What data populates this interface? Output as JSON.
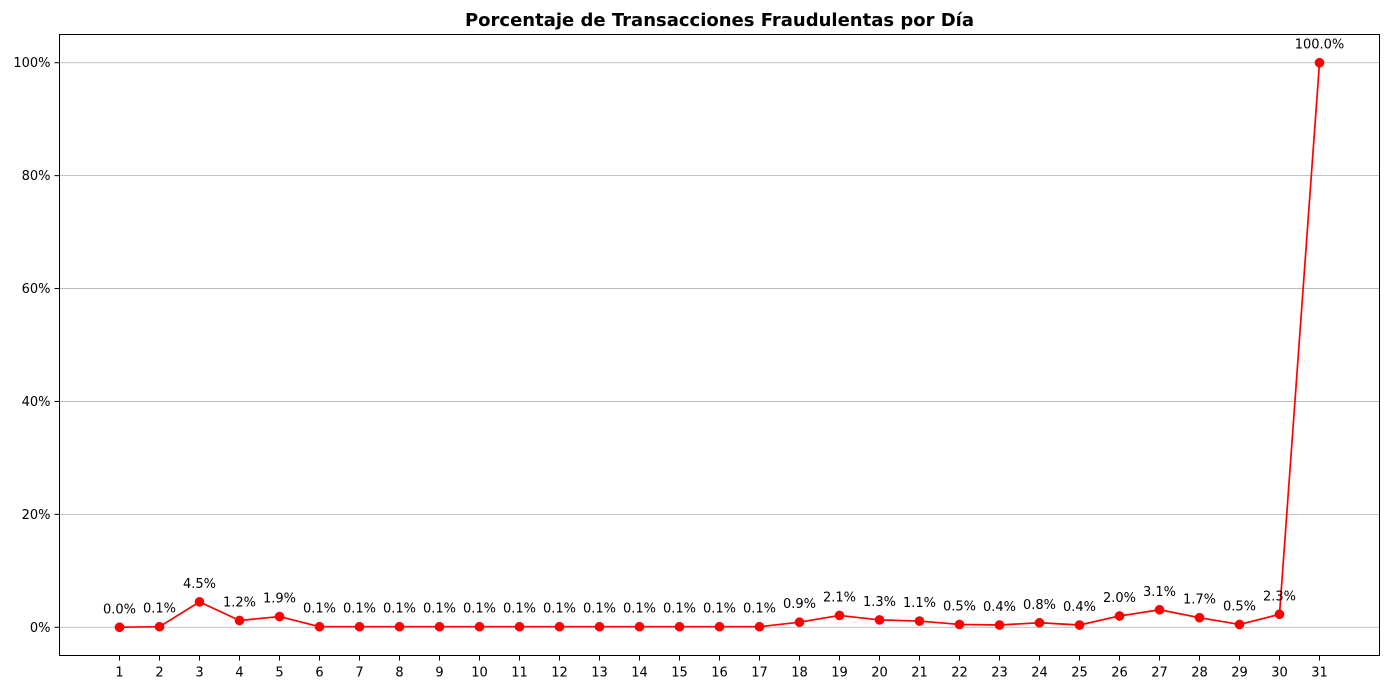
{
  "chart_data": {
    "type": "line",
    "title": "Porcentaje de Transacciones Fraudulentas por Día",
    "xlabel": "",
    "ylabel": "",
    "x": [
      1,
      2,
      3,
      4,
      5,
      6,
      7,
      8,
      9,
      10,
      11,
      12,
      13,
      14,
      15,
      16,
      17,
      18,
      19,
      20,
      21,
      22,
      23,
      24,
      25,
      26,
      27,
      28,
      29,
      30,
      31
    ],
    "x_tick_labels": [
      "1",
      "2",
      "3",
      "4",
      "5",
      "6",
      "7",
      "8",
      "9",
      "10",
      "11",
      "12",
      "13",
      "14",
      "15",
      "16",
      "17",
      "18",
      "19",
      "20",
      "21",
      "22",
      "23",
      "24",
      "25",
      "26",
      "27",
      "28",
      "29",
      "30",
      "31"
    ],
    "values": [
      0.0,
      0.1,
      4.5,
      1.2,
      1.9,
      0.1,
      0.1,
      0.1,
      0.1,
      0.1,
      0.1,
      0.1,
      0.1,
      0.1,
      0.1,
      0.1,
      0.1,
      0.9,
      2.1,
      1.3,
      1.1,
      0.5,
      0.4,
      0.8,
      0.4,
      2.0,
      3.1,
      1.7,
      0.5,
      2.3,
      100.0
    ],
    "data_labels": [
      "0.0%",
      "0.1%",
      "4.5%",
      "1.2%",
      "1.9%",
      "0.1%",
      "0.1%",
      "0.1%",
      "0.1%",
      "0.1%",
      "0.1%",
      "0.1%",
      "0.1%",
      "0.1%",
      "0.1%",
      "0.1%",
      "0.1%",
      "0.9%",
      "2.1%",
      "1.3%",
      "1.1%",
      "0.5%",
      "0.4%",
      "0.8%",
      "0.4%",
      "2.0%",
      "3.1%",
      "1.7%",
      "0.5%",
      "2.3%",
      "100.0%"
    ],
    "y_ticks": [
      0,
      20,
      40,
      60,
      80,
      100
    ],
    "y_tick_labels": [
      "0%",
      "20%",
      "40%",
      "60%",
      "80%",
      "100%"
    ],
    "xlim": [
      -0.5,
      32.5
    ],
    "ylim": [
      -5,
      105
    ],
    "grid": "horizontal",
    "legend": "none",
    "line_color": "#ff0000",
    "grid_color": "#b0b0b0"
  }
}
